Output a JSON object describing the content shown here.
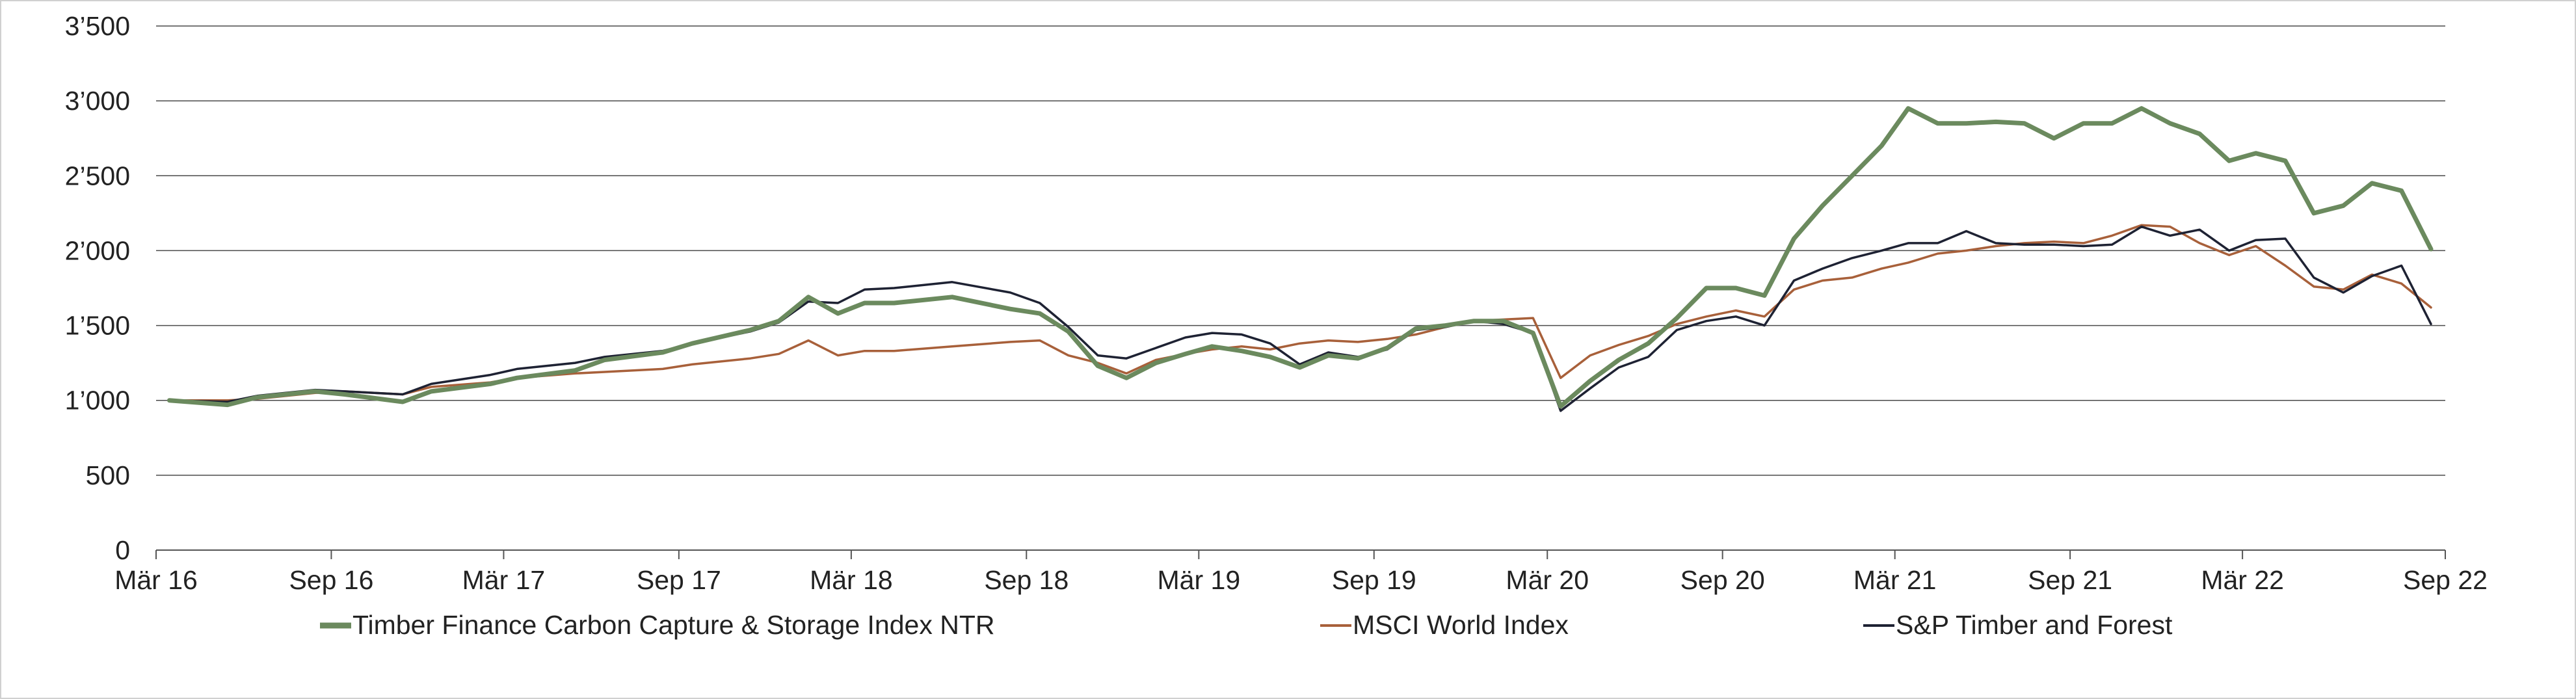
{
  "chart_data": {
    "type": "line",
    "title": "",
    "xlabel": "",
    "ylabel": "",
    "ylim": [
      0,
      3500
    ],
    "yticks": [
      0,
      500,
      1000,
      1500,
      2000,
      2500,
      3000,
      3500
    ],
    "ytick_labels": [
      "0",
      "500",
      "1’000",
      "1’500",
      "2’000",
      "2’500",
      "3’000",
      "3’500"
    ],
    "xlim": [
      "2016-03-01",
      "2022-09-30"
    ],
    "xticks": [
      "2016-03",
      "2016-09",
      "2017-03",
      "2017-09",
      "2018-03",
      "2018-09",
      "2019-03",
      "2019-09",
      "2020-03",
      "2020-09",
      "2021-03",
      "2021-09",
      "2022-03",
      "2022-09"
    ],
    "xtick_labels": [
      "Mär 16",
      "Sep 16",
      "Mär 17",
      "Sep 17",
      "Mär 18",
      "Sep 18",
      "Mär 19",
      "Sep 19",
      "Mär 20",
      "Sep 20",
      "Mär 21",
      "Sep 21",
      "Mär 22",
      "Sep 22"
    ],
    "grid": "horizontal",
    "legend_position": "bottom",
    "series": [
      {
        "name": "Timber Finance Carbon Capture & Storage Index NTR",
        "color": "#6b8a5e",
        "x": [
          "2016-03",
          "2016-05",
          "2016-06",
          "2016-08",
          "2016-09",
          "2016-11",
          "2016-12",
          "2017-02",
          "2017-03",
          "2017-05",
          "2017-06",
          "2017-08",
          "2017-09",
          "2017-11",
          "2017-12",
          "2018-01",
          "2018-02",
          "2018-03",
          "2018-04",
          "2018-06",
          "2018-08",
          "2018-09",
          "2018-10",
          "2018-11",
          "2018-12",
          "2019-01",
          "2019-02",
          "2019-03",
          "2019-04",
          "2019-05",
          "2019-06",
          "2019-07",
          "2019-08",
          "2019-09",
          "2019-10",
          "2019-11",
          "2019-12",
          "2020-01",
          "2020-02",
          "2020-03",
          "2020-04",
          "2020-05",
          "2020-06",
          "2020-07",
          "2020-08",
          "2020-09",
          "2020-10",
          "2020-11",
          "2020-12",
          "2021-01",
          "2021-02",
          "2021-03",
          "2021-04",
          "2021-05",
          "2021-06",
          "2021-07",
          "2021-08",
          "2021-09",
          "2021-10",
          "2021-11",
          "2021-12",
          "2022-01",
          "2022-02",
          "2022-03",
          "2022-04",
          "2022-05",
          "2022-06",
          "2022-07",
          "2022-08",
          "2022-09"
        ],
        "values": [
          1000,
          970,
          1020,
          1060,
          1040,
          990,
          1060,
          1110,
          1150,
          1200,
          1270,
          1320,
          1380,
          1470,
          1530,
          1690,
          1580,
          1650,
          1650,
          1690,
          1610,
          1580,
          1460,
          1230,
          1150,
          1250,
          1310,
          1360,
          1330,
          1290,
          1220,
          1300,
          1280,
          1350,
          1480,
          1500,
          1530,
          1530,
          1450,
          960,
          1130,
          1270,
          1380,
          1550,
          1750,
          1750,
          1700,
          2080,
          2300,
          2500,
          2700,
          2950,
          2850,
          2850,
          2860,
          2850,
          2750,
          2850,
          2850,
          2950,
          2850,
          2780,
          2600,
          2650,
          2600,
          2250,
          2300,
          2450,
          2400,
          2010
        ]
      },
      {
        "name": "MSCI World Index",
        "color": "#a8603a",
        "x": [
          "2016-03",
          "2016-05",
          "2016-06",
          "2016-08",
          "2016-09",
          "2016-11",
          "2016-12",
          "2017-02",
          "2017-03",
          "2017-05",
          "2017-06",
          "2017-08",
          "2017-09",
          "2017-11",
          "2017-12",
          "2018-01",
          "2018-02",
          "2018-03",
          "2018-04",
          "2018-06",
          "2018-08",
          "2018-09",
          "2018-10",
          "2018-11",
          "2018-12",
          "2019-01",
          "2019-02",
          "2019-03",
          "2019-04",
          "2019-05",
          "2019-06",
          "2019-07",
          "2019-08",
          "2019-09",
          "2019-10",
          "2019-11",
          "2019-12",
          "2020-01",
          "2020-02",
          "2020-03",
          "2020-04",
          "2020-05",
          "2020-06",
          "2020-07",
          "2020-08",
          "2020-09",
          "2020-10",
          "2020-11",
          "2020-12",
          "2021-01",
          "2021-02",
          "2021-03",
          "2021-04",
          "2021-05",
          "2021-06",
          "2021-07",
          "2021-08",
          "2021-09",
          "2021-10",
          "2021-11",
          "2021-12",
          "2022-01",
          "2022-02",
          "2022-03",
          "2022-04",
          "2022-05",
          "2022-06",
          "2022-07",
          "2022-08",
          "2022-09"
        ],
        "values": [
          1000,
          1000,
          1010,
          1050,
          1060,
          1040,
          1090,
          1120,
          1150,
          1180,
          1190,
          1210,
          1240,
          1280,
          1310,
          1400,
          1300,
          1330,
          1330,
          1360,
          1390,
          1400,
          1300,
          1250,
          1180,
          1270,
          1310,
          1340,
          1360,
          1340,
          1380,
          1400,
          1390,
          1410,
          1440,
          1490,
          1530,
          1540,
          1550,
          1150,
          1300,
          1370,
          1430,
          1510,
          1560,
          1600,
          1560,
          1740,
          1800,
          1820,
          1880,
          1920,
          1980,
          2000,
          2030,
          2050,
          2060,
          2050,
          2100,
          2170,
          2160,
          2050,
          1970,
          2030,
          1900,
          1760,
          1740,
          1840,
          1780,
          1620
        ]
      },
      {
        "name": "S&P Timber and Forest",
        "color": "#1e2233",
        "x": [
          "2016-03",
          "2016-05",
          "2016-06",
          "2016-08",
          "2016-09",
          "2016-11",
          "2016-12",
          "2017-02",
          "2017-03",
          "2017-05",
          "2017-06",
          "2017-08",
          "2017-09",
          "2017-11",
          "2017-12",
          "2018-01",
          "2018-02",
          "2018-03",
          "2018-04",
          "2018-06",
          "2018-08",
          "2018-09",
          "2018-10",
          "2018-11",
          "2018-12",
          "2019-01",
          "2019-02",
          "2019-03",
          "2019-04",
          "2019-05",
          "2019-06",
          "2019-07",
          "2019-08",
          "2019-09",
          "2019-10",
          "2019-11",
          "2019-12",
          "2020-01",
          "2020-02",
          "2020-03",
          "2020-04",
          "2020-05",
          "2020-06",
          "2020-07",
          "2020-08",
          "2020-09",
          "2020-10",
          "2020-11",
          "2020-12",
          "2021-01",
          "2021-02",
          "2021-03",
          "2021-04",
          "2021-05",
          "2021-06",
          "2021-07",
          "2021-08",
          "2021-09",
          "2021-10",
          "2021-11",
          "2021-12",
          "2022-01",
          "2022-02",
          "2022-03",
          "2022-04",
          "2022-05",
          "2022-06",
          "2022-07",
          "2022-08",
          "2022-09"
        ],
        "values": [
          1000,
          990,
          1030,
          1070,
          1060,
          1040,
          1110,
          1170,
          1210,
          1250,
          1290,
          1330,
          1380,
          1460,
          1520,
          1660,
          1650,
          1740,
          1750,
          1790,
          1720,
          1650,
          1490,
          1300,
          1280,
          1350,
          1420,
          1450,
          1440,
          1380,
          1240,
          1320,
          1290,
          1340,
          1470,
          1490,
          1530,
          1510,
          1450,
          930,
          1080,
          1220,
          1290,
          1470,
          1530,
          1560,
          1500,
          1800,
          1880,
          1950,
          2000,
          2050,
          2050,
          2130,
          2050,
          2040,
          2040,
          2030,
          2040,
          2160,
          2100,
          2140,
          2000,
          2070,
          2080,
          1820,
          1720,
          1830,
          1900,
          1510
        ]
      }
    ]
  }
}
